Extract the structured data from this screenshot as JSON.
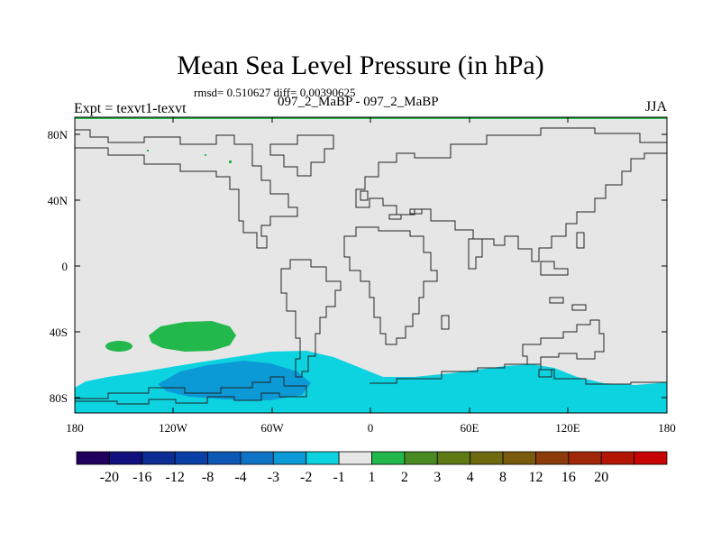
{
  "title": "Mean Sea Level Pressure (in hPa)",
  "stats": "rmsd= 0.510627 diff= 0.00390625",
  "left_label": "Expt = texvt1-texvt",
  "center_label": "097_2_MaBP - 097_2_MaBP",
  "right_label": "JJA",
  "map": {
    "lat_ticks": [
      "80N",
      "40N",
      "0",
      "40S",
      "80S"
    ],
    "lon_ticks": [
      "180",
      "120W",
      "60W",
      "0",
      "60E",
      "120E",
      "180"
    ],
    "land_color": "#e6e6e6"
  },
  "colorbar": {
    "colors": [
      "#21005e",
      "#12107e",
      "#0c2c92",
      "#0a3fa6",
      "#0e58b5",
      "#0f74c6",
      "#0b9ad6",
      "#0dd3e0",
      "#e6e6e6",
      "#22b84c",
      "#4a8a22",
      "#5f7a14",
      "#6e6a10",
      "#7a5a0c",
      "#8c3c0a",
      "#a02808",
      "#b41606",
      "#c80404"
    ],
    "labels": [
      "-20",
      "-16",
      "-12",
      "-8",
      "-4",
      "-3",
      "-2",
      "-1",
      "1",
      "2",
      "3",
      "4",
      "8",
      "12",
      "16",
      "20"
    ]
  }
}
